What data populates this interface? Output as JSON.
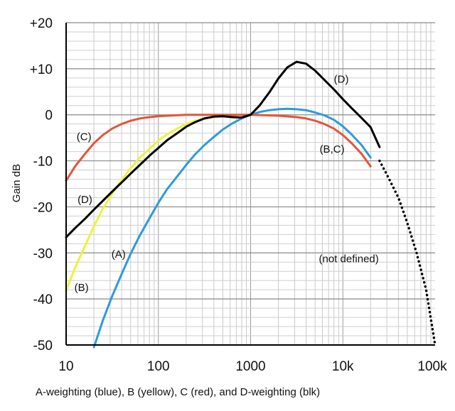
{
  "chart_data": {
    "type": "line",
    "title": "",
    "caption": "A-weighting (blue), B (yellow), C (red), and D-weighting (blk)",
    "xlabel": "",
    "ylabel": "Gain dB",
    "x_scale": "log",
    "xlim": [
      10,
      100000
    ],
    "ylim": [
      -50,
      20
    ],
    "grid": true,
    "x_ticks": [
      {
        "value": 10,
        "label": "10"
      },
      {
        "value": 100,
        "label": "100"
      },
      {
        "value": 1000,
        "label": "1000"
      },
      {
        "value": 10000,
        "label": "10k"
      },
      {
        "value": 100000,
        "label": "100k"
      }
    ],
    "y_ticks": [
      {
        "value": 20,
        "label": "+20"
      },
      {
        "value": 10,
        "label": "+10"
      },
      {
        "value": 0,
        "label": "0"
      },
      {
        "value": -10,
        "label": "-10"
      },
      {
        "value": -20,
        "label": "-20"
      },
      {
        "value": -30,
        "label": "-30"
      },
      {
        "value": -40,
        "label": "-40"
      },
      {
        "value": -50,
        "label": "-50"
      }
    ],
    "series": [
      {
        "id": "A",
        "color": "#2e9bdc",
        "dashed": false,
        "points": [
          [
            20,
            -50.5
          ],
          [
            25,
            -44.7
          ],
          [
            31.5,
            -39.4
          ],
          [
            40,
            -34.6
          ],
          [
            50,
            -30.2
          ],
          [
            63,
            -26.2
          ],
          [
            80,
            -22.5
          ],
          [
            100,
            -19.1
          ],
          [
            125,
            -16.1
          ],
          [
            160,
            -13.4
          ],
          [
            200,
            -10.9
          ],
          [
            250,
            -8.6
          ],
          [
            315,
            -6.6
          ],
          [
            400,
            -4.8
          ],
          [
            500,
            -3.2
          ],
          [
            630,
            -1.9
          ],
          [
            800,
            -0.8
          ],
          [
            1000,
            0
          ],
          [
            1250,
            0.6
          ],
          [
            1600,
            1.0
          ],
          [
            2000,
            1.2
          ],
          [
            2500,
            1.3
          ],
          [
            3150,
            1.2
          ],
          [
            4000,
            1.0
          ],
          [
            5000,
            0.5
          ],
          [
            6300,
            -0.1
          ],
          [
            8000,
            -1.1
          ],
          [
            10000,
            -2.5
          ],
          [
            12500,
            -4.3
          ],
          [
            16000,
            -6.6
          ],
          [
            20000,
            -9.3
          ]
        ]
      },
      {
        "id": "B",
        "color": "#eef23a",
        "dashed": false,
        "points": [
          [
            10,
            -38.2
          ],
          [
            12.5,
            -33.2
          ],
          [
            16,
            -28.5
          ],
          [
            20,
            -24.2
          ],
          [
            25,
            -20.4
          ],
          [
            31.5,
            -17.1
          ],
          [
            40,
            -14.2
          ],
          [
            50,
            -11.6
          ],
          [
            63,
            -9.3
          ],
          [
            80,
            -7.4
          ],
          [
            100,
            -5.6
          ],
          [
            125,
            -4.2
          ],
          [
            160,
            -3.0
          ],
          [
            200,
            -2.0
          ],
          [
            250,
            -1.3
          ],
          [
            315,
            -0.8
          ],
          [
            400,
            -0.5
          ],
          [
            500,
            -0.3
          ],
          [
            630,
            -0.1
          ],
          [
            800,
            0
          ],
          [
            1000,
            0
          ]
        ]
      },
      {
        "id": "C",
        "color": "#e2553a",
        "dashed": false,
        "points": [
          [
            10,
            -14.3
          ],
          [
            12.5,
            -11.2
          ],
          [
            16,
            -8.5
          ],
          [
            20,
            -6.2
          ],
          [
            25,
            -4.4
          ],
          [
            31.5,
            -3.0
          ],
          [
            40,
            -2.0
          ],
          [
            50,
            -1.3
          ],
          [
            63,
            -0.8
          ],
          [
            80,
            -0.5
          ],
          [
            100,
            -0.3
          ],
          [
            125,
            -0.2
          ],
          [
            160,
            -0.1
          ],
          [
            200,
            0
          ],
          [
            500,
            0
          ],
          [
            1000,
            0
          ],
          [
            2000,
            -0.2
          ],
          [
            3150,
            -0.5
          ],
          [
            4000,
            -0.8
          ],
          [
            5000,
            -1.3
          ],
          [
            6300,
            -2.0
          ],
          [
            8000,
            -3.0
          ],
          [
            10000,
            -4.4
          ],
          [
            12500,
            -6.2
          ],
          [
            16000,
            -8.5
          ],
          [
            20000,
            -11.2
          ]
        ]
      },
      {
        "id": "D",
        "color": "#000000",
        "dashed": false,
        "points": [
          [
            10,
            -26.6
          ],
          [
            12.5,
            -24.6
          ],
          [
            16,
            -22.6
          ],
          [
            20,
            -20.6
          ],
          [
            25,
            -18.7
          ],
          [
            31.5,
            -16.7
          ],
          [
            40,
            -14.7
          ],
          [
            50,
            -12.8
          ],
          [
            63,
            -10.9
          ],
          [
            80,
            -8.9
          ],
          [
            100,
            -7.2
          ],
          [
            125,
            -5.5
          ],
          [
            160,
            -4.0
          ],
          [
            200,
            -2.6
          ],
          [
            250,
            -1.6
          ],
          [
            315,
            -0.8
          ],
          [
            400,
            -0.4
          ],
          [
            500,
            -0.3
          ],
          [
            630,
            -0.5
          ],
          [
            800,
            -0.6
          ],
          [
            1000,
            0
          ],
          [
            1250,
            2.0
          ],
          [
            1600,
            4.9
          ],
          [
            2000,
            7.9
          ],
          [
            2500,
            10.3
          ],
          [
            3150,
            11.5
          ],
          [
            4000,
            11.1
          ],
          [
            5000,
            9.6
          ],
          [
            6300,
            7.6
          ],
          [
            8000,
            5.5
          ],
          [
            10000,
            3.4
          ],
          [
            12500,
            1.4
          ],
          [
            16000,
            -0.7
          ],
          [
            20000,
            -2.7
          ],
          [
            25000,
            -7.0
          ]
        ]
      },
      {
        "id": "extrapolation",
        "color": "#000000",
        "dashed": true,
        "points": [
          [
            25000,
            -10.0
          ],
          [
            30000,
            -13.0
          ],
          [
            40000,
            -18.0
          ],
          [
            50000,
            -23.5
          ],
          [
            63000,
            -30.0
          ],
          [
            80000,
            -38.0
          ],
          [
            100000,
            -50.0
          ]
        ]
      }
    ],
    "annotations": [
      {
        "id": "C",
        "text": "(C)",
        "x": 13.0,
        "y": -5.5
      },
      {
        "id": "D",
        "text": "(D)",
        "x": 13.3,
        "y": -19.2
      },
      {
        "id": "B",
        "text": "(B)",
        "x": 12.3,
        "y": -38.3
      },
      {
        "id": "A",
        "text": "(A)",
        "x": 31.0,
        "y": -31.0
      },
      {
        "id": "D-hi",
        "text": "(D)",
        "x": 8000,
        "y": 7.0
      },
      {
        "id": "BC",
        "text": "(B,C)",
        "x": 5600,
        "y": -8.2
      },
      {
        "id": "nd",
        "text": "(not defined)",
        "x": 5500,
        "y": -32.0
      }
    ]
  }
}
